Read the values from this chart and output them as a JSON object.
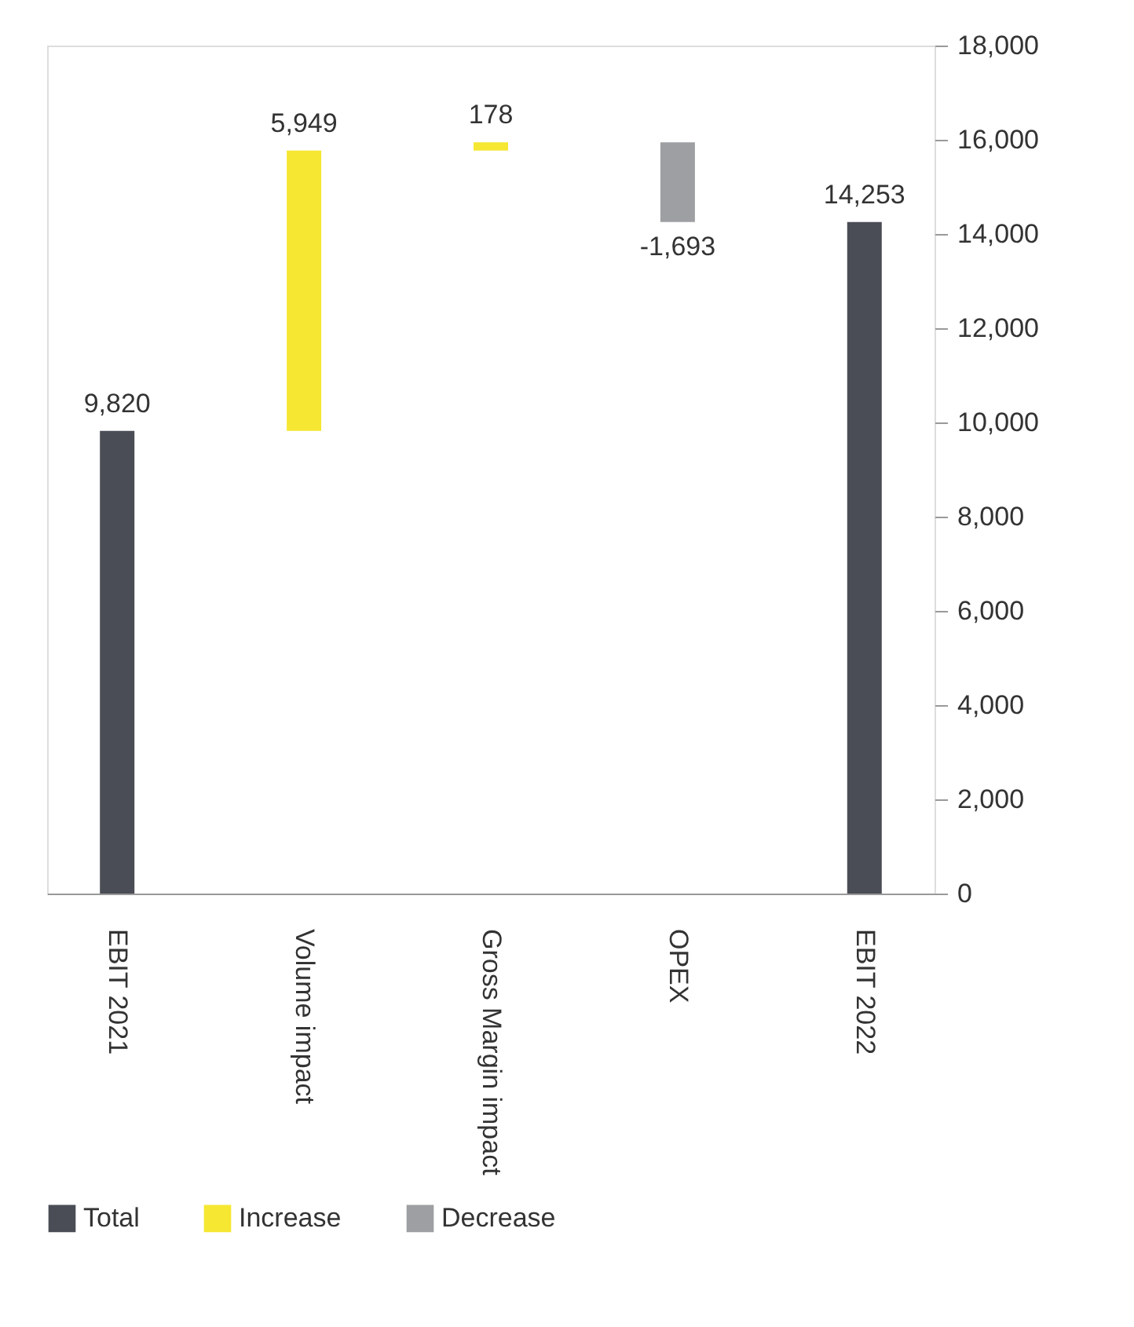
{
  "chart_data": {
    "type": "bar",
    "categories": [
      "EBIT 2021",
      "Volume impact",
      "Gross Margin impact",
      "OPEX",
      "EBIT 2022"
    ],
    "series": [
      {
        "name": "Total",
        "color": "#4a4d55",
        "values": [
          9820,
          null,
          null,
          null,
          14253
        ],
        "base": [
          0,
          null,
          null,
          null,
          0
        ],
        "value_labels": [
          "9,820",
          null,
          null,
          null,
          "14,253"
        ]
      },
      {
        "name": "Increase",
        "color": "#f5e732",
        "values": [
          null,
          5949,
          178,
          null,
          null
        ],
        "base": [
          null,
          9820,
          15769,
          null,
          null
        ],
        "value_labels": [
          null,
          "5,949",
          "178",
          null,
          null
        ]
      },
      {
        "name": "Decrease",
        "color": "#9d9fa2",
        "values": [
          null,
          null,
          null,
          -1693,
          null
        ],
        "base": [
          null,
          null,
          null,
          15947,
          null
        ],
        "value_labels": [
          null,
          null,
          null,
          "-1,693",
          null
        ]
      }
    ],
    "ylim": [
      0,
      18000
    ],
    "yticks": [
      0,
      {
        "value": 2000,
        "label": "2,000"
      },
      {
        "value": 4000,
        "label": "4,000"
      },
      {
        "value": 6000,
        "label": "6,000"
      },
      {
        "value": 8000,
        "label": "8,000"
      },
      {
        "value": 10000,
        "label": "10,000"
      },
      {
        "value": 12000,
        "label": "12,000"
      },
      {
        "value": 14000,
        "label": "14,000"
      },
      {
        "value": 16000,
        "label": "16,000"
      },
      {
        "value": 18000,
        "label": "18,000"
      }
    ],
    "grid": false,
    "legend": "bottom"
  }
}
